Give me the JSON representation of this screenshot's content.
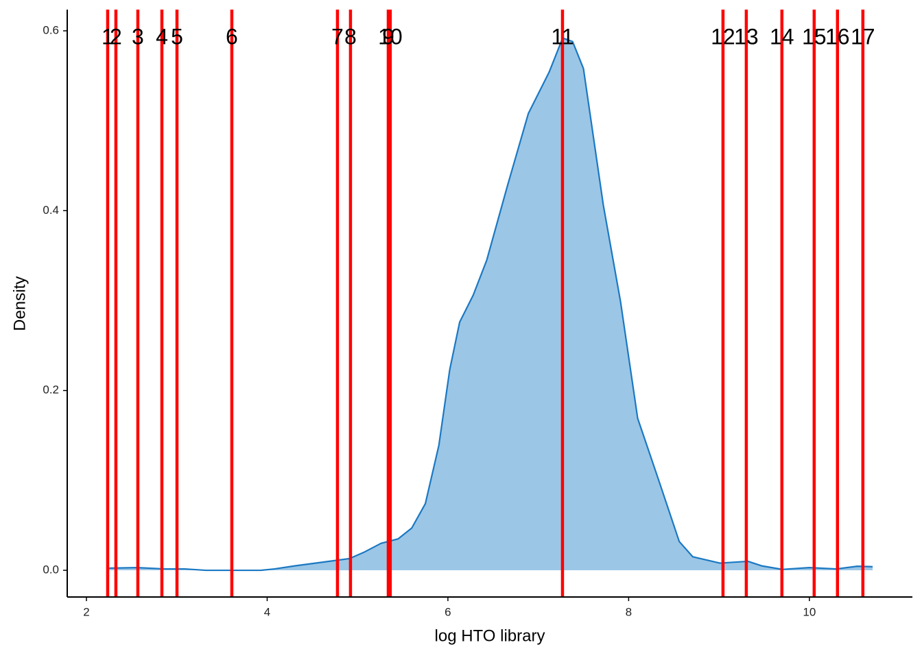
{
  "chart_data": {
    "type": "density",
    "x_label": "log HTO library",
    "y_label": "Density",
    "xlim": [
      1.7875,
      11.14
    ],
    "ylim": [
      -0.0297,
      0.6236
    ],
    "xticks": [
      2,
      4,
      6,
      8,
      10
    ],
    "yticks": [
      {
        "value": 0,
        "label": "0.0"
      },
      0.2,
      0.4,
      0.6
    ],
    "grid": false,
    "fill_color": "#9cc6e6",
    "line_color": "#1a78c2",
    "vline_color": "#ff0000",
    "x": [
      2.22,
      2.56,
      2.87,
      3.09,
      3.32,
      3.93,
      4.08,
      4.31,
      4.61,
      4.91,
      5.07,
      5.26,
      5.45,
      5.6,
      5.75,
      5.9,
      6.02,
      6.13,
      6.28,
      6.43,
      6.66,
      6.89,
      7.12,
      7.27,
      7.38,
      7.5,
      7.72,
      7.91,
      8.1,
      8.33,
      8.56,
      8.71,
      9.01,
      9.32,
      9.47,
      9.7,
      10.0,
      10.3,
      10.53,
      10.7
    ],
    "values": [
      0.0023,
      0.003,
      0.0015,
      0.0015,
      0,
      0,
      0.0015,
      0.005,
      0.009,
      0.013,
      0.02,
      0.03,
      0.035,
      0.047,
      0.074,
      0.139,
      0.223,
      0.276,
      0.306,
      0.345,
      0.428,
      0.508,
      0.554,
      0.592,
      0.588,
      0.558,
      0.406,
      0.299,
      0.169,
      0.101,
      0.032,
      0.015,
      0.008,
      0.01,
      0.005,
      0.001,
      0.003,
      0.0015,
      0.0045,
      0.004
    ],
    "vlines": [
      {
        "x": 2.235,
        "label": "1"
      },
      {
        "x": 2.326,
        "label": "2"
      },
      {
        "x": 2.569,
        "label": "3"
      },
      {
        "x": 2.835,
        "label": "4"
      },
      {
        "x": 3.002,
        "label": "5"
      },
      {
        "x": 3.609,
        "label": "6"
      },
      {
        "x": 4.778,
        "label": "7"
      },
      {
        "x": 4.922,
        "label": "8"
      },
      {
        "x": 5.34,
        "label": "9"
      },
      {
        "x": 5.362,
        "label": "10"
      },
      {
        "x": 7.268,
        "label": "11"
      },
      {
        "x": 9.044,
        "label": "12"
      },
      {
        "x": 9.302,
        "label": "13"
      },
      {
        "x": 9.696,
        "label": "14"
      },
      {
        "x": 10.053,
        "label": "15"
      },
      {
        "x": 10.311,
        "label": "16"
      },
      {
        "x": 10.592,
        "label": "17"
      }
    ]
  }
}
